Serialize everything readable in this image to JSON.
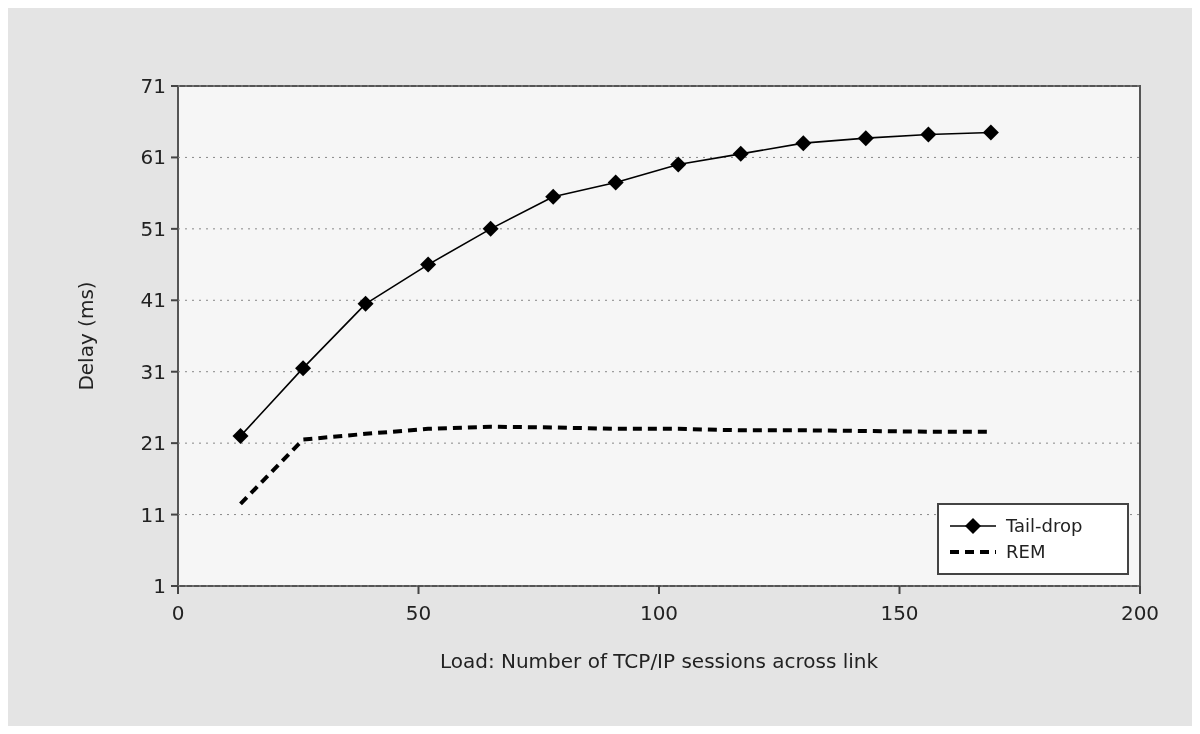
{
  "chart_data": {
    "type": "line",
    "xlabel": "Load: Number of TCP/IP sessions across link",
    "ylabel": "Delay (ms)",
    "x": [
      13,
      26,
      39,
      52,
      65,
      78,
      91,
      104,
      117,
      130,
      143,
      156,
      169
    ],
    "series": [
      {
        "name": "Tail-drop",
        "color": "#000000",
        "marker": "diamond",
        "line_style": "solid",
        "values": [
          22,
          31.5,
          40.5,
          46,
          51,
          55.5,
          57.5,
          60,
          61.5,
          63,
          63.7,
          64.2,
          64.5
        ]
      },
      {
        "name": "REM",
        "color": "#000000",
        "marker": "none",
        "line_style": "dashed",
        "values": [
          12.5,
          21.5,
          22.3,
          23,
          23.3,
          23.2,
          23,
          23,
          22.8,
          22.8,
          22.7,
          22.6,
          22.6
        ]
      }
    ],
    "xlim": [
      0,
      200
    ],
    "xticks": [
      0,
      50,
      100,
      150,
      200
    ],
    "ylim": [
      1,
      71
    ],
    "yticks": [
      1,
      11,
      21,
      31,
      41,
      51,
      61,
      71
    ],
    "grid": "y",
    "legend": "bottom right"
  }
}
